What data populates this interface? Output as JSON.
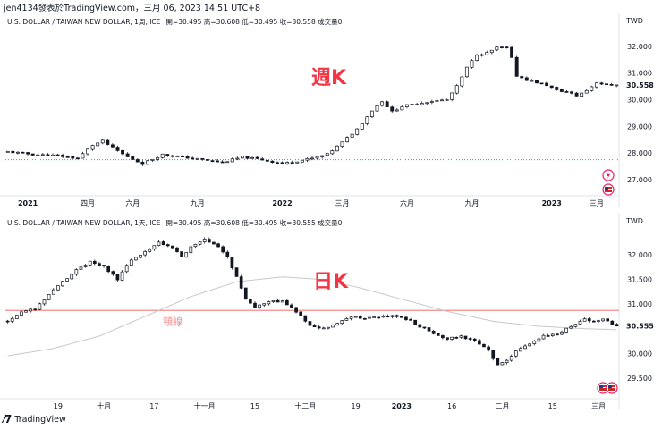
{
  "header": "jen4134發表於TradingView.com，三月 06, 2023 14:51 UTC+8",
  "footer": {
    "brand": "TradingView"
  },
  "colors": {
    "up": "#ffffff",
    "down": "#131722",
    "grid": "#f0f3fa",
    "neck": "#f28b8b",
    "ma": "#c8c8c8",
    "label": "#f23645",
    "price_tag": "#131722"
  },
  "charts": [
    {
      "title": "U.S. DOLLAR / TAIWAN NEW DOLLAR, 1周, ICE",
      "ohlc": {
        "open": "開=30.495",
        "high": "高=30.608",
        "low": "低=30.495",
        "close": "收=30.558",
        "volume": "成交量0"
      },
      "annotation": "週K",
      "currency": "TWD",
      "last_price": "30.558"
    },
    {
      "title": "U.S. DOLLAR / TAIWAN NEW DOLLAR, 1天, ICE",
      "ohlc": {
        "open": "開=30.495",
        "high": "高=30.608",
        "low": "低=30.495",
        "close": "收=30.555",
        "volume": "成交量0"
      },
      "annotation": "日K",
      "neckline_label": "頸線",
      "currency": "TWD",
      "last_price": "30.555"
    }
  ],
  "chart_data": [
    {
      "type": "candlestick",
      "ylim": [
        26.9,
        32.6
      ],
      "y_ticks": [
        "32.000",
        "31.000",
        "30.000",
        "29.000",
        "28.000",
        "27.000"
      ],
      "y_tick_values": [
        32.0,
        31.0,
        30.0,
        29.0,
        28.0,
        27.0
      ],
      "x_ticks": [
        "2021",
        "四月",
        "六月",
        "九月",
        "2022",
        "三月",
        "六月",
        "九月",
        "2023",
        "三月"
      ],
      "x_tick_index": [
        4,
        16,
        25,
        38,
        55,
        67,
        80,
        93,
        109,
        118
      ],
      "n_bars": 123,
      "anchors": [
        [
          0,
          28.05
        ],
        [
          5,
          27.95
        ],
        [
          10,
          27.9
        ],
        [
          14,
          27.8
        ],
        [
          17,
          28.3
        ],
        [
          19,
          28.45
        ],
        [
          21,
          28.2
        ],
        [
          24,
          27.85
        ],
        [
          27,
          27.6
        ],
        [
          31,
          27.95
        ],
        [
          35,
          27.85
        ],
        [
          39,
          27.75
        ],
        [
          43,
          27.65
        ],
        [
          47,
          27.85
        ],
        [
          51,
          27.75
        ],
        [
          55,
          27.6
        ],
        [
          58,
          27.7
        ],
        [
          61,
          27.8
        ],
        [
          64,
          27.95
        ],
        [
          67,
          28.4
        ],
        [
          70,
          28.9
        ],
        [
          73,
          29.6
        ],
        [
          75,
          29.95
        ],
        [
          77,
          29.55
        ],
        [
          79,
          29.75
        ],
        [
          82,
          29.85
        ],
        [
          85,
          29.95
        ],
        [
          88,
          30.0
        ],
        [
          90,
          30.5
        ],
        [
          92,
          31.2
        ],
        [
          94,
          31.7
        ],
        [
          96,
          31.75
        ],
        [
          98,
          31.95
        ],
        [
          100,
          31.95
        ],
        [
          101,
          31.55
        ],
        [
          102,
          30.9
        ],
        [
          104,
          30.75
        ],
        [
          106,
          30.65
        ],
        [
          108,
          30.55
        ],
        [
          110,
          30.35
        ],
        [
          112,
          30.3
        ],
        [
          114,
          30.15
        ],
        [
          116,
          30.35
        ],
        [
          118,
          30.65
        ],
        [
          120,
          30.55
        ],
        [
          122,
          30.558
        ]
      ],
      "price_lines": [
        {
          "value": 27.75,
          "style": "dotted",
          "color": "#26a69a"
        }
      ],
      "last": 30.558,
      "event_icons": [
        "lightning-icon",
        "us-flag-icon"
      ]
    },
    {
      "type": "candlestick",
      "ylim": [
        29.3,
        32.45
      ],
      "y_ticks": [
        "32.000",
        "31.500",
        "31.000",
        "30.500",
        "30.000",
        "29.500"
      ],
      "y_tick_values": [
        32.0,
        31.5,
        31.0,
        30.5,
        30.0,
        29.5
      ],
      "x_ticks": [
        "19",
        "十月",
        "17",
        "十一月",
        "15",
        "十二月",
        "19",
        "2023",
        "16",
        "二月",
        "15",
        "三月"
      ],
      "x_tick_index": [
        11,
        21,
        32,
        43,
        54,
        65,
        76,
        86,
        97,
        108,
        119,
        129
      ],
      "n_bars": 134,
      "anchors": [
        [
          0,
          30.65
        ],
        [
          3,
          30.85
        ],
        [
          6,
          30.9
        ],
        [
          9,
          31.2
        ],
        [
          12,
          31.45
        ],
        [
          15,
          31.7
        ],
        [
          18,
          31.85
        ],
        [
          21,
          31.75
        ],
        [
          24,
          31.5
        ],
        [
          27,
          31.9
        ],
        [
          30,
          32.05
        ],
        [
          33,
          32.25
        ],
        [
          36,
          32.15
        ],
        [
          38,
          31.95
        ],
        [
          40,
          32.15
        ],
        [
          43,
          32.3
        ],
        [
          46,
          32.15
        ],
        [
          48,
          31.95
        ],
        [
          50,
          31.55
        ],
        [
          52,
          31.1
        ],
        [
          54,
          30.95
        ],
        [
          57,
          31.05
        ],
        [
          60,
          31.05
        ],
        [
          63,
          30.85
        ],
        [
          66,
          30.55
        ],
        [
          69,
          30.5
        ],
        [
          72,
          30.6
        ],
        [
          75,
          30.75
        ],
        [
          78,
          30.7
        ],
        [
          81,
          30.75
        ],
        [
          84,
          30.75
        ],
        [
          87,
          30.7
        ],
        [
          90,
          30.55
        ],
        [
          93,
          30.4
        ],
        [
          96,
          30.3
        ],
        [
          99,
          30.35
        ],
        [
          102,
          30.25
        ],
        [
          105,
          30.05
        ],
        [
          107,
          29.75
        ],
        [
          109,
          29.85
        ],
        [
          111,
          30.05
        ],
        [
          114,
          30.2
        ],
        [
          117,
          30.35
        ],
        [
          120,
          30.4
        ],
        [
          123,
          30.55
        ],
        [
          126,
          30.7
        ],
        [
          128,
          30.65
        ],
        [
          130,
          30.7
        ],
        [
          133,
          30.555
        ]
      ],
      "moving_average": [
        [
          0,
          29.95
        ],
        [
          10,
          30.1
        ],
        [
          20,
          30.35
        ],
        [
          30,
          30.75
        ],
        [
          40,
          31.15
        ],
        [
          50,
          31.45
        ],
        [
          60,
          31.55
        ],
        [
          68,
          31.5
        ],
        [
          76,
          31.35
        ],
        [
          86,
          31.1
        ],
        [
          96,
          30.85
        ],
        [
          106,
          30.65
        ],
        [
          116,
          30.55
        ],
        [
          126,
          30.5
        ],
        [
          133,
          30.48
        ]
      ],
      "neckline": 30.87,
      "last": 30.555,
      "event_icons": [
        "us-flag-icon",
        "us-flag-icon"
      ]
    }
  ]
}
